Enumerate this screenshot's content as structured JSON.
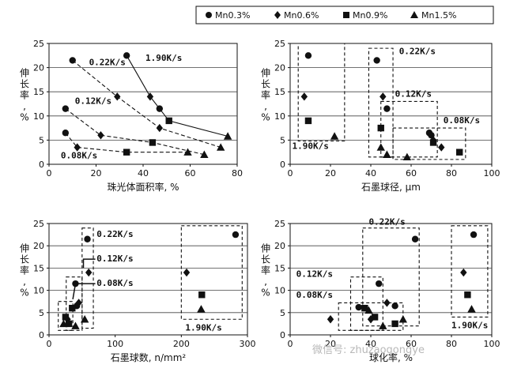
{
  "legend": {
    "items": [
      {
        "marker": "circle",
        "label": "Mn0.3%"
      },
      {
        "marker": "diamond",
        "label": "Mn0.6%"
      },
      {
        "marker": "square",
        "label": "Mn0.9%"
      },
      {
        "marker": "triangle",
        "label": "Mn1.5%"
      }
    ]
  },
  "watermark": "微信号: zhuzaogongye",
  "chart_data": [
    {
      "type": "scatter",
      "xlabel": "珠光体面积率, %",
      "ylabel": "伸长率, %",
      "xlim": [
        0,
        80
      ],
      "ylim": [
        0,
        25
      ],
      "xticks": [
        0,
        20,
        40,
        60,
        80
      ],
      "yticks": [
        0,
        5,
        10,
        15,
        20,
        25
      ],
      "grid": "horizontal",
      "series": [
        {
          "marker": "circle",
          "points": [
            [
              7,
              6.5
            ],
            [
              7,
              11.5
            ],
            [
              10,
              21.5
            ],
            [
              33,
              22.5
            ],
            [
              47,
              11.5
            ]
          ]
        },
        {
          "marker": "diamond",
          "points": [
            [
              12,
              3.5
            ],
            [
              22,
              6
            ],
            [
              29,
              14
            ],
            [
              43,
              14
            ],
            [
              47,
              7.5
            ]
          ]
        },
        {
          "marker": "square",
          "points": [
            [
              33,
              2.5
            ],
            [
              44,
              4.5
            ],
            [
              51,
              9
            ]
          ]
        },
        {
          "marker": "triangle",
          "points": [
            [
              59,
              2.5
            ],
            [
              66,
              2
            ],
            [
              73,
              3.5
            ],
            [
              76,
              5.8
            ]
          ]
        }
      ],
      "lines": [
        {
          "style": "dashed",
          "points": [
            [
              7,
              6.5
            ],
            [
              12,
              3.5
            ],
            [
              33,
              2.5
            ],
            [
              59,
              2.5
            ]
          ]
        },
        {
          "style": "dashed",
          "points": [
            [
              7,
              11.5
            ],
            [
              22,
              6
            ],
            [
              44,
              4.5
            ],
            [
              66,
              2
            ]
          ]
        },
        {
          "style": "dashed",
          "points": [
            [
              10,
              21.5
            ],
            [
              29,
              14
            ],
            [
              47,
              7.5
            ],
            [
              73,
              3.5
            ]
          ]
        },
        {
          "style": "solid",
          "points": [
            [
              33,
              22.5
            ],
            [
              43,
              14
            ],
            [
              51,
              9
            ],
            [
              76,
              5.8
            ]
          ]
        }
      ],
      "annotations": [
        {
          "text": "1.90K/s",
          "x": 41,
          "y": 21.4
        },
        {
          "text": "0.22K/s",
          "x": 17,
          "y": 20.5
        },
        {
          "text": "0.12K/s",
          "x": 11,
          "y": 12.5
        },
        {
          "text": "0.08K/s",
          "x": 5,
          "y": 1.2
        }
      ]
    },
    {
      "type": "scatter",
      "xlabel": "石墨球径, μm",
      "ylabel": "伸长率, %",
      "xlim": [
        0,
        100
      ],
      "ylim": [
        0,
        25
      ],
      "xticks": [
        0,
        20,
        40,
        60,
        80,
        100
      ],
      "yticks": [
        0,
        5,
        10,
        15,
        20,
        25
      ],
      "grid": "horizontal",
      "series": [
        {
          "marker": "circle",
          "points": [
            [
              9,
              22.5
            ],
            [
              43,
              21.5
            ],
            [
              48,
              11.5
            ],
            [
              69,
              6.5
            ],
            [
              70,
              6
            ]
          ]
        },
        {
          "marker": "diamond",
          "points": [
            [
              7,
              14
            ],
            [
              46,
              14
            ],
            [
              71,
              5
            ],
            [
              75,
              3.5
            ]
          ]
        },
        {
          "marker": "square",
          "points": [
            [
              9,
              9
            ],
            [
              45,
              7.5
            ],
            [
              71,
              4.5
            ],
            [
              84,
              2.5
            ]
          ]
        },
        {
          "marker": "triangle",
          "points": [
            [
              22,
              5.8
            ],
            [
              45,
              3.5
            ],
            [
              48,
              2
            ],
            [
              58,
              1.5
            ]
          ]
        }
      ],
      "boxes": [
        {
          "label": "1.90K/s",
          "x0": 4,
          "x1": 27,
          "y0": 4.8,
          "y1": 25
        },
        {
          "label": "0.22K/s",
          "x0": 39,
          "x1": 51,
          "y0": 1.5,
          "y1": 24
        },
        {
          "label": "0.12K/s",
          "x0": 45,
          "x1": 73,
          "y0": 1.5,
          "y1": 13
        },
        {
          "label": "0.08K/s",
          "x0": 51,
          "x1": 87,
          "y0": 1,
          "y1": 7.5
        }
      ],
      "annotations": [
        {
          "text": "0.22K/s",
          "x": 54,
          "y": 22.8
        },
        {
          "text": "0.12K/s",
          "x": 52,
          "y": 14
        },
        {
          "text": "0.08K/s",
          "x": 76,
          "y": 8.5
        },
        {
          "text": "1.90K/s",
          "x": 1,
          "y": 3.2
        }
      ]
    },
    {
      "type": "scatter",
      "xlabel": "石墨球数, n/mm²",
      "ylabel": "伸长率, %",
      "xlim": [
        0,
        300
      ],
      "ylim": [
        0,
        25
      ],
      "xticks": [
        0,
        100,
        200,
        300
      ],
      "yticks": [
        0,
        5,
        10,
        15,
        20,
        25
      ],
      "grid": "horizontal",
      "series": [
        {
          "marker": "circle",
          "points": [
            [
              40,
              11.5
            ],
            [
              42,
              6.5
            ],
            [
              58,
              21.5
            ],
            [
              282,
              22.5
            ]
          ]
        },
        {
          "marker": "diamond",
          "points": [
            [
              28,
              3.5
            ],
            [
              45,
              7.2
            ],
            [
              60,
              14
            ],
            [
              208,
              14
            ]
          ]
        },
        {
          "marker": "square",
          "points": [
            [
              25,
              4
            ],
            [
              30,
              2.5
            ],
            [
              35,
              6
            ],
            [
              231,
              9
            ]
          ]
        },
        {
          "marker": "triangle",
          "points": [
            [
              22,
              2.5
            ],
            [
              40,
              2
            ],
            [
              54,
              3.5
            ],
            [
              230,
              5.8
            ]
          ]
        }
      ],
      "boxes": [
        {
          "label": "0.22K/s",
          "x0": 50,
          "x1": 67,
          "y0": 1.5,
          "y1": 24
        },
        {
          "label": "0.12K/s",
          "x0": 26,
          "x1": 50,
          "y0": 1,
          "y1": 13
        },
        {
          "label": "0.08K/s",
          "x0": 14,
          "x1": 36,
          "y0": 1,
          "y1": 7.5
        },
        {
          "label": "1.90K/s",
          "x0": 200,
          "x1": 292,
          "y0": 3.5,
          "y1": 24.5
        }
      ],
      "annotations": [
        {
          "text": "0.22K/s",
          "x": 72,
          "y": 22
        },
        {
          "text": "0.12K/s",
          "x": 72,
          "y": 16.5
        },
        {
          "text": "0.08K/s",
          "x": 72,
          "y": 11
        },
        {
          "text": "1.90K/s",
          "x": 206,
          "y": 1
        }
      ]
    },
    {
      "type": "scatter",
      "xlabel": "球化率, %",
      "ylabel": "伸长率, %",
      "xlim": [
        0,
        100
      ],
      "ylim": [
        0,
        25
      ],
      "xticks": [
        0,
        20,
        40,
        60,
        80,
        100
      ],
      "yticks": [
        0,
        5,
        10,
        15,
        20,
        25
      ],
      "grid": "horizontal",
      "series": [
        {
          "marker": "circle",
          "points": [
            [
              34,
              6.2
            ],
            [
              44,
              11.5
            ],
            [
              52,
              6.5
            ],
            [
              62,
              21.5
            ],
            [
              91,
              22.5
            ]
          ]
        },
        {
          "marker": "diamond",
          "points": [
            [
              20,
              3.5
            ],
            [
              40,
              3.5
            ],
            [
              48,
              7.2
            ],
            [
              86,
              14
            ]
          ]
        },
        {
          "marker": "square",
          "points": [
            [
              37,
              6
            ],
            [
              42,
              4
            ],
            [
              52,
              2.5
            ],
            [
              88,
              9
            ]
          ]
        },
        {
          "marker": "triangle",
          "points": [
            [
              39,
              5.5
            ],
            [
              46,
              2
            ],
            [
              56,
              3.5
            ],
            [
              90,
              5.8
            ]
          ]
        }
      ],
      "boxes": [
        {
          "label": "0.22K/s",
          "x0": 36,
          "x1": 64,
          "y0": 2,
          "y1": 24
        },
        {
          "label": "0.12K/s",
          "x0": 30,
          "x1": 46,
          "y0": 1,
          "y1": 13
        },
        {
          "label": "0.08K/s",
          "x0": 24,
          "x1": 56,
          "y0": 1,
          "y1": 7.2
        },
        {
          "label": "1.90K/s",
          "x0": 80,
          "x1": 98,
          "y0": 4,
          "y1": 24.5
        }
      ],
      "annotations": [
        {
          "text": "0.22K/s",
          "x": 39,
          "y": 24.7
        },
        {
          "text": "0.12K/s",
          "x": 3,
          "y": 13
        },
        {
          "text": "0.08K/s",
          "x": 3,
          "y": 8.3
        },
        {
          "text": "1.90K/s",
          "x": 80,
          "y": 1.5
        }
      ]
    }
  ]
}
